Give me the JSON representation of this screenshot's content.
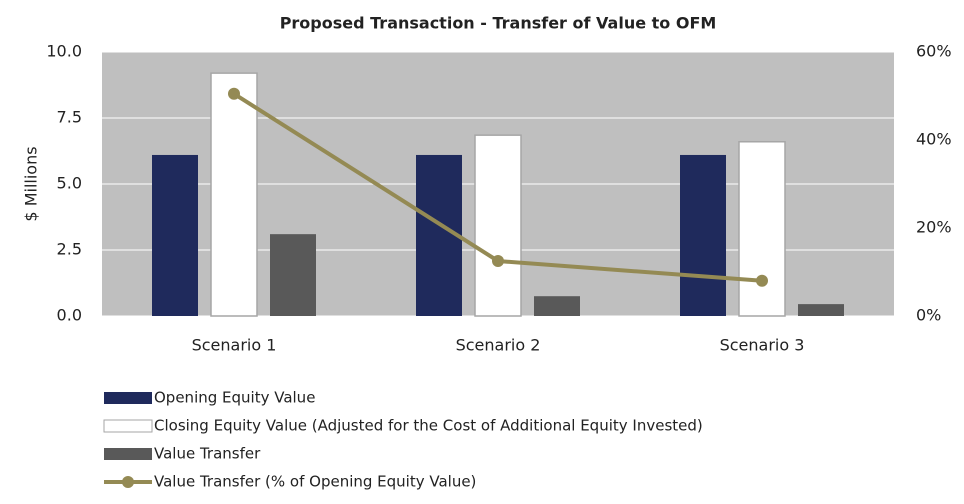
{
  "chart_data": {
    "type": "bar",
    "title": "Proposed Transaction - Transfer of Value to OFM",
    "y_label": "$ Millions",
    "categories": [
      "Scenario 1",
      "Scenario 2",
      "Scenario 3"
    ],
    "series": [
      {
        "name": "Opening Equity Value",
        "color": "#1f2a5c",
        "values": [
          6.1,
          6.1,
          6.1
        ]
      },
      {
        "name": "Closing Equity Value (Adjusted for the Cost of Additional Equity Invested)",
        "color": "#ffffff",
        "values": [
          9.2,
          6.85,
          6.6
        ]
      },
      {
        "name": "Value Transfer",
        "color": "#595959",
        "values": [
          3.1,
          0.75,
          0.45
        ]
      },
      {
        "name": "Value Transfer (% of Opening Equity Value)",
        "color": "#948a54",
        "type": "line",
        "axis": "y2",
        "values": [
          50.5,
          12.5,
          8.0
        ]
      }
    ],
    "ylim": [
      0,
      10
    ],
    "yticks": [
      {
        "value": 0,
        "label": "0.0"
      },
      2.5,
      {
        "value": 5,
        "label": "5.0"
      },
      7.5,
      {
        "value": 10,
        "label": "10.0"
      }
    ],
    "y2lim": [
      0,
      60
    ],
    "y2ticks": [
      {
        "value": 0,
        "label": "0%"
      },
      {
        "value": 20,
        "label": "20%"
      },
      {
        "value": 40,
        "label": "40%"
      },
      {
        "value": 60,
        "label": "60%"
      }
    ],
    "grid": true,
    "legend": "bottom"
  }
}
